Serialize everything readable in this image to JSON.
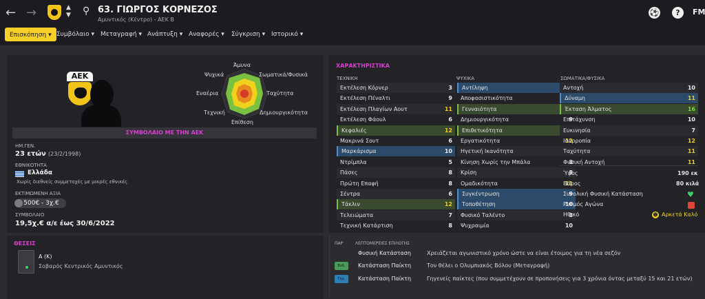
{
  "header": {
    "player_title": "63. ΓΙΩΡΓΟΣ ΚΟΡΝΕΖΟΣ",
    "player_subtitle": "Αμυντικός (Κέντρο) - ΑΕΚ Β",
    "fm_logo": "FM",
    "icons": [
      "back-arrow-icon",
      "forward-arrow-icon",
      "club-crest-icon",
      "up-down-icon",
      "search-icon",
      "ball-icon",
      "help-icon"
    ]
  },
  "tabs": [
    {
      "label": "Επισκόπηση",
      "active": true
    },
    {
      "label": "Συμβόλαιο"
    },
    {
      "label": "Μεταγραφή"
    },
    {
      "label": "Ανάπτυξη"
    },
    {
      "label": "Αναφορές"
    },
    {
      "label": "Σύγκριση"
    },
    {
      "label": "Ιστορικό"
    }
  ],
  "profile": {
    "crest_text": "ΑΕΚ",
    "radar_labels": {
      "top": "Άμυνα",
      "physical": "Σωματικά/Φυσικά",
      "speed": "Ταχύτητα",
      "creativity": "Δημιουργικότητα",
      "attack": "Επίθεση",
      "technique": "Τεχνική",
      "aerial": "Εναέρια",
      "mental": "Ψυχικά"
    },
    "contract_title": "ΣΥΜΒΟΛΑΙΟ ΜΕ ΤΗΝ ΑΕΚ",
    "dob_label": "ΗΜ.ΓΕΝ.",
    "age": "23 ετών",
    "dob": "(23/2/1998)",
    "nationality_label": "ΕΘΝΙΚΟΤΗΤΑ",
    "nationality": "Ελλάδα",
    "caps": "Χωρίς διεθνείς συμμετοχές με μικρές εθνικές",
    "value_label": "ΕΚΤΙΜΩΜΕΝΗ ΑΞΙΑ",
    "value": "500€ - 3χ.€",
    "contract_label": "ΣΥΜΒΟΛΑΙΟ",
    "contract": "19,5χ.€ α/ε έως 30/6/2022"
  },
  "attributes": {
    "title": "ΧΑΡΑΚΤΗΡΙΣΤΙΚΑ",
    "technical_header": "ΤΕΧΝΙΚΗ",
    "mental_header": "ΨΥΧΙΚΑ",
    "physical_header": "ΣΩΜΑΤΙΚΑ/ΦΥΣΙΚΑ",
    "technical": [
      {
        "name": "Εκτέλεση Κόρνερ",
        "value": "3",
        "hl": ""
      },
      {
        "name": "Εκτέλεση Πέναλτι",
        "value": "9",
        "hl": ""
      },
      {
        "name": "Εκτέλεση Πλαγίων Αουτ",
        "value": "11",
        "hl": ""
      },
      {
        "name": "Εκτέλεση Φάουλ",
        "value": "6",
        "hl": ""
      },
      {
        "name": "Κεφαλιές",
        "value": "12",
        "hl": "green"
      },
      {
        "name": "Μακρινά Σουτ",
        "value": "6",
        "hl": ""
      },
      {
        "name": "Μαρκάρισμα",
        "value": "10",
        "hl": "blue"
      },
      {
        "name": "Ντρίμπλα",
        "value": "5",
        "hl": ""
      },
      {
        "name": "Πάσες",
        "value": "8",
        "hl": ""
      },
      {
        "name": "Πρώτη Επαφή",
        "value": "8",
        "hl": ""
      },
      {
        "name": "Σέντρα",
        "value": "6",
        "hl": ""
      },
      {
        "name": "Τάκλιν",
        "value": "12",
        "hl": "green"
      },
      {
        "name": "Τελειώματα",
        "value": "7",
        "hl": ""
      },
      {
        "name": "Τεχνική Κατάρτιση",
        "value": "8",
        "hl": ""
      }
    ],
    "mental": [
      {
        "name": "Αντίληψη",
        "value": "12",
        "hl": "blue"
      },
      {
        "name": "Αποφασιστικότητα",
        "value": "12",
        "hl": ""
      },
      {
        "name": "Γενναιότητα",
        "value": "13",
        "hl": "green"
      },
      {
        "name": "Δημιουργικότητα",
        "value": "9",
        "hl": ""
      },
      {
        "name": "Επιθετικότητα",
        "value": "11",
        "hl": "green"
      },
      {
        "name": "Εργατικότητα",
        "value": "12",
        "hl": ""
      },
      {
        "name": "Ηγετική Ικανότητα",
        "value": "11",
        "hl": ""
      },
      {
        "name": "Κίνηση Χωρίς την Μπάλα",
        "value": "8",
        "hl": ""
      },
      {
        "name": "Κρίση",
        "value": "8",
        "hl": ""
      },
      {
        "name": "Ομαδικότητα",
        "value": "11",
        "hl": ""
      },
      {
        "name": "Συγκέντρωση",
        "value": "9",
        "hl": "blue"
      },
      {
        "name": "Τοποθέτηση",
        "value": "10",
        "hl": "blue"
      },
      {
        "name": "Φυσικό Ταλέντο",
        "value": "8",
        "hl": ""
      },
      {
        "name": "Ψυχραιμία",
        "value": "10",
        "hl": ""
      }
    ],
    "physical": [
      {
        "name": "Αντοχή",
        "value": "10",
        "hl": ""
      },
      {
        "name": "Δύναμη",
        "value": "11",
        "hl": "blue"
      },
      {
        "name": "Έκταση Άλματος",
        "value": "16",
        "hl": "green"
      },
      {
        "name": "Επιτάχυνση",
        "value": "10",
        "hl": ""
      },
      {
        "name": "Ευκινησία",
        "value": "7",
        "hl": ""
      },
      {
        "name": "Ισορροπία",
        "value": "12",
        "hl": ""
      },
      {
        "name": "Ταχύτητα",
        "value": "11",
        "hl": ""
      },
      {
        "name": "Φυσική Αντοχή",
        "value": "11",
        "hl": ""
      }
    ],
    "height_label": "Ύψος",
    "height": "190 εκ",
    "weight_label": "Βάρος",
    "weight": "80 κιλά",
    "condition_label": "Συνολική Φυσική Κατάσταση",
    "match_label": "Ρυθμός Αγώνα",
    "morale_label": "Ηθικό",
    "morale": "Αρκετά Καλό"
  },
  "positions": {
    "title": "ΘΕΣΕΙΣ",
    "position": "Α (Κ)",
    "role": "Σοβαρός Κεντρικός Αμυντικός"
  },
  "notes": {
    "col1": "ΠΑΡ",
    "col2": "ΛΕΠΤΟΜΕΡΕΙΕΣ ΕΠΙΛΟΓΗΣ",
    "rows": [
      {
        "type": "Φυσική Κατάσταση",
        "desc": "Χρειάζεται αγωνιστικό χρόνο ώστε να είναι έτοιμος για τη νέα σεζόν",
        "badge": ""
      },
      {
        "type": "Κατάσταση Παίκτη",
        "desc": "Τον θέλει ο Ολυμπιακός Βόλου (Μεταγραφή)",
        "badge": "green"
      },
      {
        "type": "Κατάσταση Παίκτη",
        "desc": "Γηγενείς παίκτες (που συμμετέχουν σε προπονήσεις για 3 χρόνια όντας μεταξύ 15 και 21 ετών)",
        "badge": "blue"
      }
    ]
  },
  "colors": {
    "accent": "#f6d028",
    "section": "#d63fd0",
    "good": "#7bdc3a",
    "mid": "#f0d21c"
  }
}
